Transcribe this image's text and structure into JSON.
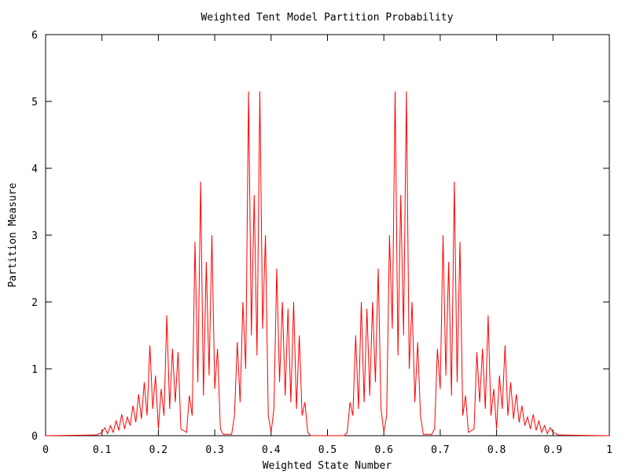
{
  "chart_data": {
    "type": "line",
    "title": "Weighted Tent Model Partition Probability",
    "x_label": "Weighted State Number",
    "y_label": "Partition Measure",
    "xlim": [
      0,
      1
    ],
    "ylim": [
      0,
      6
    ],
    "xticks": [
      0,
      0.1,
      0.2,
      0.3,
      0.4,
      0.5,
      0.6,
      0.7,
      0.8,
      0.9,
      1
    ],
    "yticks": [
      0,
      1,
      2,
      3,
      4,
      5,
      6
    ],
    "grid": false,
    "series": [
      {
        "color": "#ff0000",
        "x": [
          0,
          0.09,
          0.1,
          0.105,
          0.11,
          0.115,
          0.12,
          0.125,
          0.13,
          0.135,
          0.14,
          0.145,
          0.15,
          0.155,
          0.16,
          0.165,
          0.17,
          0.175,
          0.18,
          0.185,
          0.19,
          0.195,
          0.2,
          0.205,
          0.21,
          0.215,
          0.22,
          0.225,
          0.23,
          0.235,
          0.24,
          0.25,
          0.255,
          0.26,
          0.265,
          0.27,
          0.275,
          0.28,
          0.285,
          0.29,
          0.295,
          0.3,
          0.305,
          0.31,
          0.315,
          0.33,
          0.335,
          0.34,
          0.345,
          0.35,
          0.355,
          0.36,
          0.365,
          0.37,
          0.375,
          0.38,
          0.385,
          0.39,
          0.395,
          0.4,
          0.405,
          0.41,
          0.415,
          0.42,
          0.425,
          0.43,
          0.435,
          0.44,
          0.445,
          0.45,
          0.455,
          0.46,
          0.465,
          0.47,
          0.5,
          0.53,
          0.535,
          0.54,
          0.545,
          0.55,
          0.555,
          0.56,
          0.565,
          0.57,
          0.575,
          0.58,
          0.585,
          0.59,
          0.595,
          0.6,
          0.605,
          0.61,
          0.615,
          0.62,
          0.625,
          0.63,
          0.635,
          0.64,
          0.645,
          0.65,
          0.655,
          0.66,
          0.665,
          0.67,
          0.685,
          0.69,
          0.695,
          0.7,
          0.705,
          0.71,
          0.715,
          0.72,
          0.725,
          0.73,
          0.735,
          0.74,
          0.745,
          0.75,
          0.76,
          0.765,
          0.77,
          0.775,
          0.78,
          0.785,
          0.79,
          0.795,
          0.8,
          0.805,
          0.81,
          0.815,
          0.82,
          0.825,
          0.83,
          0.835,
          0.84,
          0.845,
          0.85,
          0.855,
          0.86,
          0.865,
          0.87,
          0.875,
          0.88,
          0.885,
          0.89,
          0.895,
          0.9,
          0.91,
          1
        ],
        "values": [
          0,
          0.01,
          0.05,
          0.12,
          0.03,
          0.15,
          0.05,
          0.22,
          0.08,
          0.32,
          0.1,
          0.28,
          0.15,
          0.45,
          0.2,
          0.62,
          0.25,
          0.8,
          0.3,
          1.35,
          0.4,
          0.9,
          0.1,
          0.7,
          0.3,
          1.8,
          0.4,
          1.3,
          0.5,
          1.25,
          0.1,
          0.05,
          0.6,
          0.3,
          2.9,
          0.8,
          3.8,
          0.6,
          2.6,
          0.9,
          3,
          0.7,
          1.3,
          0.1,
          0.02,
          0.02,
          0.3,
          1.4,
          0.5,
          2,
          1,
          5.15,
          1.5,
          3.6,
          1.2,
          5.15,
          1.6,
          3,
          0.3,
          0.05,
          0.4,
          2.5,
          0.8,
          2,
          0.6,
          1.9,
          0.5,
          2,
          0.4,
          1.5,
          0.3,
          0.5,
          0.05,
          0,
          0,
          0,
          0.05,
          0.5,
          0.3,
          1.5,
          0.4,
          2,
          0.5,
          1.9,
          0.6,
          2,
          0.8,
          2.5,
          0.4,
          0.05,
          0.3,
          3,
          1.6,
          5.15,
          1.2,
          3.6,
          1.5,
          5.15,
          1,
          2,
          0.5,
          1.4,
          0.3,
          0.02,
          0.02,
          0.1,
          1.3,
          0.7,
          3,
          0.9,
          2.6,
          0.6,
          3.8,
          0.8,
          2.9,
          0.3,
          0.6,
          0.05,
          0.1,
          1.25,
          0.5,
          1.3,
          0.4,
          1.8,
          0.3,
          0.7,
          0.1,
          0.9,
          0.4,
          1.35,
          0.3,
          0.8,
          0.25,
          0.62,
          0.2,
          0.45,
          0.15,
          0.28,
          0.1,
          0.32,
          0.08,
          0.22,
          0.05,
          0.15,
          0.03,
          0.12,
          0.05,
          0.01,
          0
        ]
      }
    ]
  }
}
